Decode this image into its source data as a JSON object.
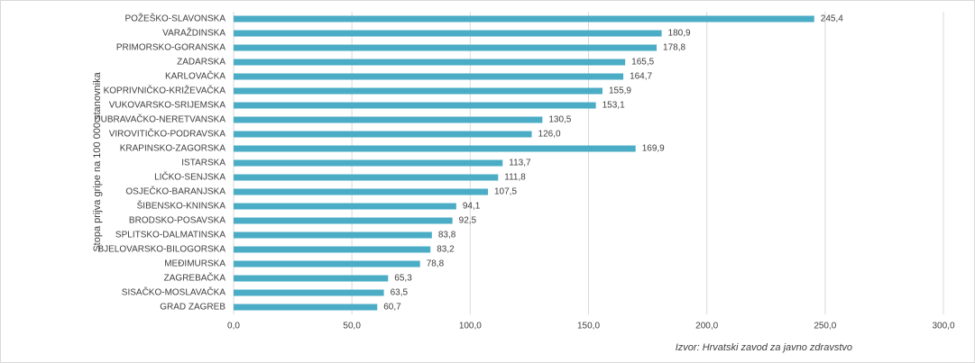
{
  "chart_data": {
    "type": "barh",
    "y_axis_label": "Stopa prijva gripe na 100 000 stanovnika",
    "source": "Izvor: Hrvatski zavod za javno zdravstvo",
    "categories": [
      "POŽEŠKO-SLAVONSKA",
      "VARAŽDINSKA",
      "PRIMORSKO-GORANSKA",
      "ZADARSKA",
      "KARLOVAČKA",
      "KOPRIVNIČKO-KRIŽEVAČKA",
      "VUKOVARSKO-SRIJEMSKA",
      "DUBRAVAČKO-NERETVANSKA",
      "VIROVITIČKO-PODRAVSKA",
      "KRAPINSKO-ZAGORSKA",
      "ISTARSKA",
      "LIČKO-SENJSKA",
      "OSJEČKO-BARANJSKA",
      "ŠIBENSKO-KNINSKA",
      "BRODSKO-POSAVSKA",
      "SPLITSKO-DALMATINSKA",
      "BJELOVARSKO-BILOGORSKA",
      "MEĐIMURSKA",
      "ZAGREBAČKA",
      "SISAČKO-MOSLAVAČKA",
      "GRAD ZAGREB"
    ],
    "values": [
      245.4,
      180.9,
      178.8,
      165.5,
      164.7,
      155.9,
      153.1,
      130.5,
      126.0,
      169.9,
      113.7,
      111.8,
      107.5,
      94.1,
      92.5,
      83.8,
      83.2,
      78.8,
      65.3,
      63.5,
      60.7
    ],
    "value_labels": [
      "245,4",
      "180,9",
      "178,8",
      "165,5",
      "164,7",
      "155,9",
      "153,1",
      "130,5",
      "126,0",
      "169,9",
      "113,7",
      "111,8",
      "107,5",
      "94,1",
      "92,5",
      "83,8",
      "83,2",
      "78,8",
      "65,3",
      "63,5",
      "60,7"
    ],
    "color": "#4bacc6",
    "xlim": [
      0,
      300
    ],
    "xticks": [
      {
        "value": 0,
        "label": "0,0"
      },
      {
        "value": 50,
        "label": "50,0"
      },
      {
        "value": 100,
        "label": "100,0"
      },
      {
        "value": 150,
        "label": "150,0"
      },
      {
        "value": 200,
        "label": "200,0"
      },
      {
        "value": 250,
        "label": "250,0"
      },
      {
        "value": 300,
        "label": "300,0"
      }
    ],
    "grid": true
  }
}
